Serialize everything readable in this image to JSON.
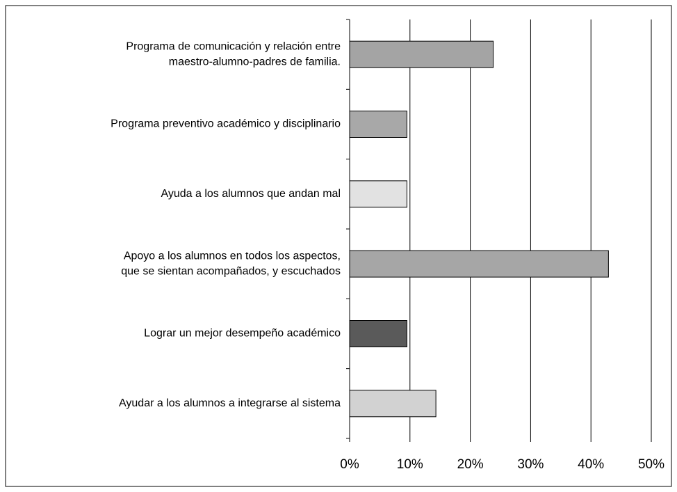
{
  "chart_data": {
    "type": "bar",
    "orientation": "horizontal",
    "categories": [
      [
        "Programa de comunicación y relación entre",
        "maestro-alumno-padres de familia."
      ],
      [
        "Programa preventivo académico y disciplinario"
      ],
      [
        "Ayuda a los alumnos que andan mal"
      ],
      [
        "Apoyo a los alumnos en todos los aspectos,",
        "que se sientan acompañados, y escuchados"
      ],
      [
        "Lograr un mejor desempeño académico"
      ],
      [
        "Ayudar a los alumnos a integrarse al sistema"
      ]
    ],
    "values": [
      23.8,
      9.5,
      9.5,
      42.9,
      9.5,
      14.3
    ],
    "colors": [
      "#a4a4a4",
      "#a8a8a8",
      "#e2e2e2",
      "#a6a6a6",
      "#5a5a5a",
      "#d2d2d2"
    ],
    "xlim": [
      0,
      50
    ],
    "xticks": [
      {
        "value": 0,
        "label": "0%"
      },
      {
        "value": 10,
        "label": "10%"
      },
      {
        "value": 20,
        "label": "20%"
      },
      {
        "value": 30,
        "label": "30%"
      },
      {
        "value": 40,
        "label": "40%"
      },
      {
        "value": 50,
        "label": "50%"
      }
    ],
    "grid": true
  }
}
